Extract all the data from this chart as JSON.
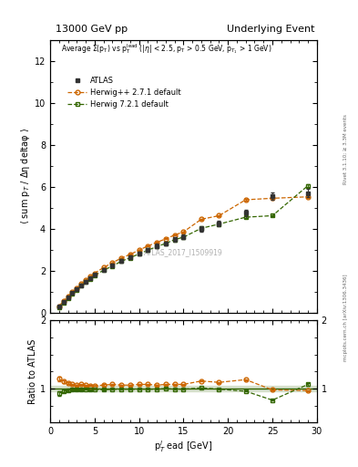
{
  "title_left": "13000 GeV pp",
  "title_right": "Underlying Event",
  "watermark": "ATLAS_2017_I1509919",
  "right_label_top": "Rivet 3.1.10; ≥ 3.3M events",
  "right_label_bot": "mcplots.cern.ch [arXiv:1306.3436]",
  "xlabel": "p$_T^l$ ead [GeV]",
  "ylabel_main": "⟨ sum p$_T$ / Δη deltaφ ⟩",
  "ylabel_ratio": "Ratio to ATLAS",
  "xlim": [
    0,
    30
  ],
  "ylim_main": [
    0,
    13
  ],
  "ylim_ratio": [
    0.5,
    2.0
  ],
  "yticks_main": [
    0,
    2,
    4,
    6,
    8,
    10,
    12
  ],
  "yticks_ratio": [
    1.0,
    2.0
  ],
  "atlas_x": [
    1.0,
    1.5,
    2.0,
    2.5,
    3.0,
    3.5,
    4.0,
    4.5,
    5.0,
    6.0,
    7.0,
    8.0,
    9.0,
    10.0,
    11.0,
    12.0,
    13.0,
    14.0,
    15.0,
    17.0,
    19.0,
    22.0,
    25.0,
    29.0
  ],
  "atlas_y": [
    0.28,
    0.5,
    0.72,
    0.94,
    1.12,
    1.3,
    1.48,
    1.65,
    1.8,
    2.05,
    2.25,
    2.48,
    2.65,
    2.82,
    3.0,
    3.18,
    3.3,
    3.5,
    3.62,
    4.0,
    4.25,
    4.75,
    5.55,
    5.7
  ],
  "atlas_yerr": [
    0.02,
    0.02,
    0.02,
    0.03,
    0.03,
    0.04,
    0.04,
    0.05,
    0.05,
    0.06,
    0.07,
    0.08,
    0.08,
    0.09,
    0.09,
    0.1,
    0.1,
    0.11,
    0.11,
    0.12,
    0.13,
    0.15,
    0.18,
    0.2
  ],
  "hwpp_x": [
    1.0,
    1.5,
    2.0,
    2.5,
    3.0,
    3.5,
    4.0,
    4.5,
    5.0,
    6.0,
    7.0,
    8.0,
    9.0,
    10.0,
    11.0,
    12.0,
    13.0,
    14.0,
    15.0,
    17.0,
    19.0,
    22.0,
    25.0,
    29.0
  ],
  "hwpp_y": [
    0.32,
    0.55,
    0.78,
    1.0,
    1.18,
    1.38,
    1.56,
    1.72,
    1.88,
    2.15,
    2.38,
    2.6,
    2.78,
    2.98,
    3.18,
    3.35,
    3.52,
    3.7,
    3.85,
    4.45,
    4.62,
    5.38,
    5.45,
    5.52
  ],
  "hwpp_yerr": [
    0.01,
    0.01,
    0.01,
    0.01,
    0.01,
    0.01,
    0.01,
    0.01,
    0.01,
    0.02,
    0.02,
    0.02,
    0.02,
    0.02,
    0.02,
    0.02,
    0.02,
    0.02,
    0.03,
    0.03,
    0.03,
    0.03,
    0.04,
    0.05
  ],
  "hw7_x": [
    1.0,
    1.5,
    2.0,
    2.5,
    3.0,
    3.5,
    4.0,
    4.5,
    5.0,
    6.0,
    7.0,
    8.0,
    9.0,
    10.0,
    11.0,
    12.0,
    13.0,
    14.0,
    15.0,
    17.0,
    19.0,
    22.0,
    25.0,
    29.0
  ],
  "hw7_y": [
    0.26,
    0.48,
    0.7,
    0.92,
    1.1,
    1.28,
    1.46,
    1.62,
    1.78,
    2.02,
    2.22,
    2.45,
    2.62,
    2.8,
    2.98,
    3.15,
    3.3,
    3.48,
    3.6,
    4.02,
    4.22,
    4.55,
    4.62,
    6.05
  ],
  "hw7_yerr": [
    0.01,
    0.01,
    0.01,
    0.01,
    0.01,
    0.01,
    0.01,
    0.01,
    0.01,
    0.01,
    0.01,
    0.02,
    0.02,
    0.02,
    0.02,
    0.02,
    0.02,
    0.02,
    0.02,
    0.02,
    0.03,
    0.03,
    0.04,
    0.08
  ],
  "hwpp_ratio": [
    1.14,
    1.1,
    1.08,
    1.06,
    1.05,
    1.06,
    1.05,
    1.04,
    1.04,
    1.05,
    1.06,
    1.05,
    1.05,
    1.06,
    1.06,
    1.05,
    1.06,
    1.06,
    1.06,
    1.11,
    1.09,
    1.13,
    0.98,
    0.97
  ],
  "hw7_ratio": [
    0.93,
    0.96,
    0.97,
    0.98,
    0.98,
    0.98,
    0.99,
    0.98,
    0.99,
    0.98,
    0.99,
    0.99,
    0.99,
    0.99,
    0.99,
    0.99,
    1.0,
    0.99,
    0.99,
    1.01,
    0.99,
    0.96,
    0.83,
    1.06
  ],
  "atlas_color": "#333333",
  "hwpp_color": "#cc6600",
  "hw7_color": "#336600",
  "bg_color": "#ffffff"
}
